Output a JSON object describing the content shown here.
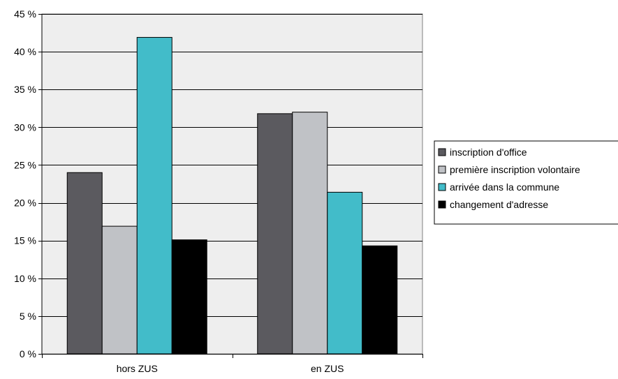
{
  "chart_data": {
    "type": "bar",
    "categories": [
      "hors ZUS",
      "en ZUS"
    ],
    "series": [
      {
        "name": "inscription d'office",
        "values": [
          24.0,
          31.8
        ],
        "color": "#5b5a5f"
      },
      {
        "name": "première inscription volontaire",
        "values": [
          16.9,
          32.0
        ],
        "color": "#c0c2c6"
      },
      {
        "name": "arrivée dans la commune",
        "values": [
          41.9,
          21.4
        ],
        "color": "#42bcc9"
      },
      {
        "name": "changement d'adresse",
        "values": [
          15.1,
          14.3
        ],
        "color": "#000000"
      }
    ],
    "ylim": [
      0,
      45
    ],
    "yticks": [
      0,
      5,
      10,
      15,
      20,
      25,
      30,
      35,
      40,
      45
    ],
    "ytick_labels": [
      "0 %",
      "5 %",
      "10 %",
      "15 %",
      "20 %",
      "25 %",
      "30 %",
      "35 %",
      "40 %",
      "45 %"
    ],
    "title": "",
    "xlabel": "",
    "ylabel": "",
    "grid": true,
    "legend_position": "right",
    "plot_background": "#eeeeee"
  }
}
